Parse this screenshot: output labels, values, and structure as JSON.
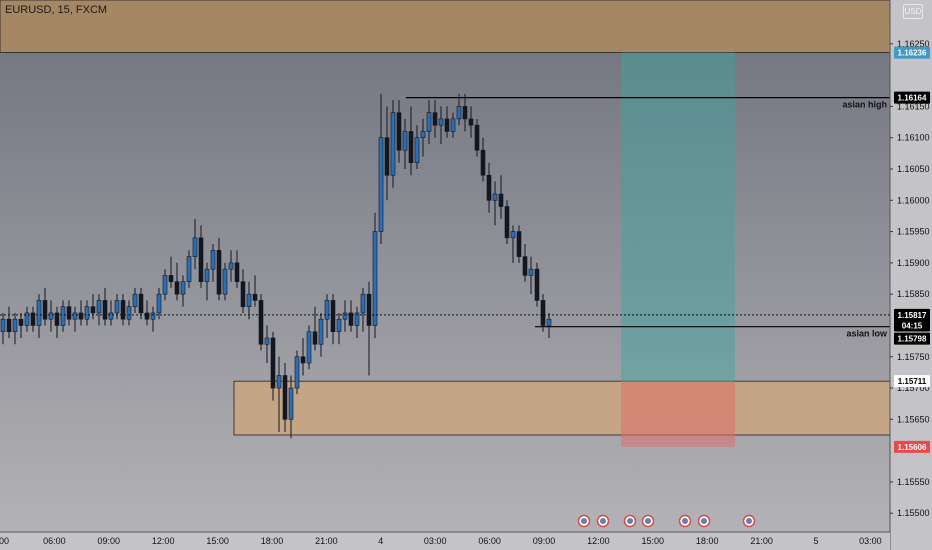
{
  "header": {
    "symbol": "EURUSD, 15, FXCM",
    "currency": "USD"
  },
  "chart_data": {
    "type": "candlestick",
    "ylim": [
      1.1547,
      1.1632
    ],
    "price_ticks": [
      "1.16250",
      "1.16150",
      "1.16100",
      "1.16050",
      "1.16000",
      "1.15950",
      "1.15900",
      "1.15850",
      "1.15750",
      "1.15700",
      "1.15650",
      "1.15550",
      "1.15500"
    ],
    "time_ticks": [
      "00",
      "06:00",
      "09:00",
      "12:00",
      "15:00",
      "18:00",
      "21:00",
      "4",
      "03:00",
      "06:00",
      "09:00",
      "12:00",
      "15:00",
      "18:00",
      "21:00",
      "5",
      "03:00"
    ],
    "price_tags": [
      {
        "label": "1.16236",
        "value": 1.16236,
        "bg": "#3f9bc4",
        "fg": "#ffffff"
      },
      {
        "label": "1.16164",
        "value": 1.16164,
        "bg": "#000000",
        "fg": "#ffffff"
      },
      {
        "label": "1.15817",
        "value": 1.15817,
        "bg": "#000000",
        "fg": "#ffffff"
      },
      {
        "label": "04:15",
        "value": 1.158,
        "bg": "#000000",
        "fg": "#ffffff"
      },
      {
        "label": "1.15798",
        "value": 1.15779,
        "bg": "#000000",
        "fg": "#ffffff"
      },
      {
        "label": "1.15711",
        "value": 1.15711,
        "bg": "#ffffff",
        "fg": "#000000"
      },
      {
        "label": "1.15606",
        "value": 1.15606,
        "bg": "#e84a4a",
        "fg": "#ffffff"
      }
    ],
    "annotations": {
      "asian_high": {
        "label": "asian high",
        "value": 1.16164
      },
      "asian_low": {
        "label": "asian low",
        "value": 1.15798
      }
    },
    "zones": [
      {
        "name": "supply",
        "top": 1.1632,
        "bottom": 1.16236,
        "color": "#a88863"
      },
      {
        "name": "demand",
        "top": 1.15711,
        "bottom": 1.15625,
        "color": "#c9a57e"
      }
    ],
    "position": {
      "entry": 1.15711,
      "target": 1.16236,
      "stop": 1.15606
    },
    "current_price": 1.15817,
    "candles": [
      [
        1.1579,
        1.1582,
        1.1577,
        1.1581
      ],
      [
        1.1581,
        1.1583,
        1.1578,
        1.1579
      ],
      [
        1.1579,
        1.1582,
        1.1577,
        1.1581
      ],
      [
        1.1581,
        1.1582,
        1.1578,
        1.158
      ],
      [
        1.158,
        1.1583,
        1.1579,
        1.1582
      ],
      [
        1.1582,
        1.1583,
        1.1579,
        1.158
      ],
      [
        1.158,
        1.1585,
        1.1578,
        1.1584
      ],
      [
        1.1584,
        1.1586,
        1.158,
        1.1581
      ],
      [
        1.1581,
        1.1584,
        1.1579,
        1.1582
      ],
      [
        1.1582,
        1.1583,
        1.1578,
        1.158
      ],
      [
        1.158,
        1.1584,
        1.1579,
        1.1583
      ],
      [
        1.1583,
        1.1584,
        1.158,
        1.1581
      ],
      [
        1.1581,
        1.1583,
        1.1579,
        1.1582
      ],
      [
        1.1582,
        1.1584,
        1.158,
        1.1581
      ],
      [
        1.1581,
        1.1584,
        1.158,
        1.1583
      ],
      [
        1.1583,
        1.1585,
        1.1581,
        1.1582
      ],
      [
        1.1582,
        1.1585,
        1.158,
        1.1584
      ],
      [
        1.1584,
        1.1586,
        1.158,
        1.1581
      ],
      [
        1.1581,
        1.1584,
        1.158,
        1.1582
      ],
      [
        1.1582,
        1.1585,
        1.1581,
        1.1584
      ],
      [
        1.1584,
        1.1585,
        1.158,
        1.1581
      ],
      [
        1.1581,
        1.1584,
        1.158,
        1.1583
      ],
      [
        1.1583,
        1.1586,
        1.1582,
        1.1585
      ],
      [
        1.1585,
        1.1586,
        1.1581,
        1.1582
      ],
      [
        1.1582,
        1.1584,
        1.158,
        1.1581
      ],
      [
        1.1581,
        1.1583,
        1.1579,
        1.1582
      ],
      [
        1.1582,
        1.1586,
        1.1581,
        1.1585
      ],
      [
        1.1585,
        1.1589,
        1.1584,
        1.1588
      ],
      [
        1.1588,
        1.1591,
        1.1586,
        1.1587
      ],
      [
        1.1587,
        1.159,
        1.1584,
        1.1585
      ],
      [
        1.1585,
        1.1588,
        1.1583,
        1.1587
      ],
      [
        1.1587,
        1.1592,
        1.1586,
        1.1591
      ],
      [
        1.1591,
        1.1597,
        1.1589,
        1.1594
      ],
      [
        1.1594,
        1.1596,
        1.1586,
        1.1587
      ],
      [
        1.1587,
        1.159,
        1.1584,
        1.1589
      ],
      [
        1.1589,
        1.1593,
        1.1587,
        1.1592
      ],
      [
        1.1592,
        1.1594,
        1.1584,
        1.1585
      ],
      [
        1.1585,
        1.159,
        1.1584,
        1.1589
      ],
      [
        1.1589,
        1.1592,
        1.1587,
        1.159
      ],
      [
        1.159,
        1.1592,
        1.1586,
        1.1587
      ],
      [
        1.1587,
        1.1589,
        1.1582,
        1.1583
      ],
      [
        1.1583,
        1.1587,
        1.1581,
        1.1585
      ],
      [
        1.1585,
        1.1588,
        1.1583,
        1.1584
      ],
      [
        1.1584,
        1.1585,
        1.1576,
        1.1577
      ],
      [
        1.1577,
        1.158,
        1.1574,
        1.1578
      ],
      [
        1.1578,
        1.1579,
        1.1568,
        1.157
      ],
      [
        1.157,
        1.1575,
        1.1563,
        1.1572
      ],
      [
        1.1572,
        1.1574,
        1.1563,
        1.1565
      ],
      [
        1.1565,
        1.1572,
        1.1562,
        1.157
      ],
      [
        1.157,
        1.1576,
        1.1569,
        1.1575
      ],
      [
        1.1575,
        1.1578,
        1.1572,
        1.1574
      ],
      [
        1.1574,
        1.158,
        1.1573,
        1.1579
      ],
      [
        1.1579,
        1.1583,
        1.1576,
        1.1577
      ],
      [
        1.1577,
        1.1582,
        1.1575,
        1.1581
      ],
      [
        1.1581,
        1.1585,
        1.1578,
        1.1584
      ],
      [
        1.1584,
        1.1585,
        1.1577,
        1.1579
      ],
      [
        1.1579,
        1.1582,
        1.1577,
        1.1581
      ],
      [
        1.1581,
        1.1584,
        1.1579,
        1.1582
      ],
      [
        1.1582,
        1.1584,
        1.1579,
        1.158
      ],
      [
        1.158,
        1.1583,
        1.1578,
        1.1582
      ],
      [
        1.1582,
        1.1586,
        1.1579,
        1.1585
      ],
      [
        1.1585,
        1.1587,
        1.1572,
        1.158
      ],
      [
        1.158,
        1.1598,
        1.1578,
        1.1595
      ],
      [
        1.1595,
        1.1617,
        1.1593,
        1.161
      ],
      [
        1.161,
        1.1615,
        1.16,
        1.1604
      ],
      [
        1.1604,
        1.1616,
        1.1602,
        1.1614
      ],
      [
        1.1614,
        1.1616,
        1.1606,
        1.1608
      ],
      [
        1.1608,
        1.1613,
        1.1605,
        1.1611
      ],
      [
        1.1611,
        1.1615,
        1.1604,
        1.1606
      ],
      [
        1.1606,
        1.1612,
        1.1605,
        1.161
      ],
      [
        1.161,
        1.1613,
        1.1607,
        1.1611
      ],
      [
        1.1611,
        1.1616,
        1.1609,
        1.1614
      ],
      [
        1.1614,
        1.1616,
        1.161,
        1.1612
      ],
      [
        1.1612,
        1.1615,
        1.1609,
        1.1613
      ],
      [
        1.1613,
        1.1615,
        1.161,
        1.1611
      ],
      [
        1.1611,
        1.1614,
        1.161,
        1.1613
      ],
      [
        1.1613,
        1.1617,
        1.1612,
        1.1615
      ],
      [
        1.1615,
        1.1617,
        1.1611,
        1.1613
      ],
      [
        1.1613,
        1.1615,
        1.161,
        1.1612
      ],
      [
        1.1612,
        1.1613,
        1.1607,
        1.1608
      ],
      [
        1.1608,
        1.161,
        1.1603,
        1.1604
      ],
      [
        1.1604,
        1.1606,
        1.1598,
        1.16
      ],
      [
        1.16,
        1.1603,
        1.1596,
        1.1601
      ],
      [
        1.1601,
        1.1604,
        1.1597,
        1.1599
      ],
      [
        1.1599,
        1.16,
        1.1593,
        1.1594
      ],
      [
        1.1594,
        1.1596,
        1.159,
        1.1595
      ],
      [
        1.1595,
        1.1596,
        1.159,
        1.1591
      ],
      [
        1.1591,
        1.1593,
        1.1587,
        1.1588
      ],
      [
        1.1588,
        1.1591,
        1.1585,
        1.1589
      ],
      [
        1.1589,
        1.159,
        1.1583,
        1.1584
      ],
      [
        1.1584,
        1.1585,
        1.1579,
        1.158
      ],
      [
        1.158,
        1.1582,
        1.1578,
        1.1581
      ]
    ]
  }
}
